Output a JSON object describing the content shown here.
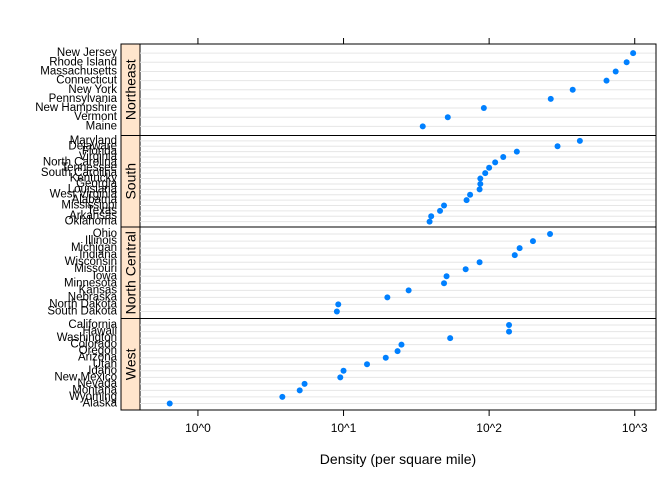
{
  "chart_data": {
    "type": "scatter",
    "subtype": "dotplot",
    "title": "",
    "xlabel": "Density (per square mile)",
    "ylabel": "",
    "x_scale": "log10",
    "xlim": [
      0.4,
      1400
    ],
    "x_ticks": [
      1,
      10,
      100,
      1000
    ],
    "x_tick_labels": [
      "10^0",
      "10^1",
      "10^2",
      "10^3"
    ],
    "grid": true,
    "colors": {
      "point": "#0080ff",
      "strip_background": "#ffe5cc",
      "row_line": "#e6e6e6"
    },
    "panels": [
      {
        "name": "West",
        "points": [
          {
            "state": "Alaska",
            "density": 0.64
          },
          {
            "state": "Wyoming",
            "density": 3.8
          },
          {
            "state": "Montana",
            "density": 5.0
          },
          {
            "state": "Nevada",
            "density": 5.4
          },
          {
            "state": "New Mexico",
            "density": 9.5
          },
          {
            "state": "Idaho",
            "density": 10
          },
          {
            "state": "Utah",
            "density": 14.5
          },
          {
            "state": "Arizona",
            "density": 19.5
          },
          {
            "state": "Oregon",
            "density": 23.5
          },
          {
            "state": "Colorado",
            "density": 25
          },
          {
            "state": "Washington",
            "density": 54
          },
          {
            "state": "Hawaii",
            "density": 137
          },
          {
            "state": "California",
            "density": 137
          }
        ]
      },
      {
        "name": "North Central",
        "points": [
          {
            "state": "South Dakota",
            "density": 9.0
          },
          {
            "state": "North Dakota",
            "density": 9.2
          },
          {
            "state": "Nebraska",
            "density": 20
          },
          {
            "state": "Kansas",
            "density": 28
          },
          {
            "state": "Minnesota",
            "density": 49
          },
          {
            "state": "Iowa",
            "density": 51
          },
          {
            "state": "Missouri",
            "density": 69
          },
          {
            "state": "Wisconsin",
            "density": 86
          },
          {
            "state": "Indiana",
            "density": 150
          },
          {
            "state": "Michigan",
            "density": 162
          },
          {
            "state": "Illinois",
            "density": 200
          },
          {
            "state": "Ohio",
            "density": 262
          }
        ]
      },
      {
        "name": "South",
        "points": [
          {
            "state": "Oklahoma",
            "density": 39
          },
          {
            "state": "Arkansas",
            "density": 40
          },
          {
            "state": "Texas",
            "density": 46
          },
          {
            "state": "Mississippi",
            "density": 49
          },
          {
            "state": "Alabama",
            "density": 70
          },
          {
            "state": "West Virginia",
            "density": 74
          },
          {
            "state": "Louisiana",
            "density": 86
          },
          {
            "state": "Georgia",
            "density": 87
          },
          {
            "state": "Kentucky",
            "density": 87
          },
          {
            "state": "South Carolina",
            "density": 94
          },
          {
            "state": "Tennessee",
            "density": 100
          },
          {
            "state": "North Carolina",
            "density": 110
          },
          {
            "state": "Virginia",
            "density": 125
          },
          {
            "state": "Florida",
            "density": 155
          },
          {
            "state": "Delaware",
            "density": 295
          },
          {
            "state": "Maryland",
            "density": 420
          }
        ]
      },
      {
        "name": "Northeast",
        "points": [
          {
            "state": "Maine",
            "density": 35
          },
          {
            "state": "Vermont",
            "density": 52
          },
          {
            "state": "New Hampshire",
            "density": 92
          },
          {
            "state": "Pennsylvania",
            "density": 265
          },
          {
            "state": "New York",
            "density": 375
          },
          {
            "state": "Connecticut",
            "density": 640
          },
          {
            "state": "Massachusetts",
            "density": 740
          },
          {
            "state": "Rhode Island",
            "density": 880
          },
          {
            "state": "New Jersey",
            "density": 975
          }
        ]
      }
    ]
  }
}
